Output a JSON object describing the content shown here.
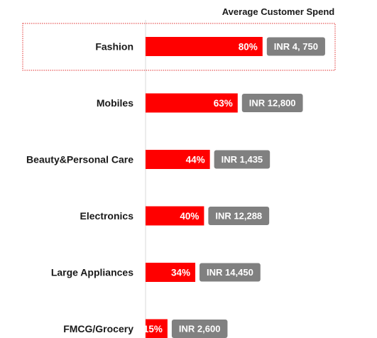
{
  "chart_data": {
    "type": "bar",
    "orientation": "horizontal",
    "column_header": "Average Customer Spend",
    "categories": [
      "Fashion",
      "Mobiles",
      "Beauty&Personal Care",
      "Electronics",
      "Large Appliances",
      "FMCG/Grocery"
    ],
    "values": [
      80,
      63,
      44,
      40,
      34,
      15
    ],
    "value_labels": [
      "80%",
      "63%",
      "44%",
      "40%",
      "34%",
      "15%"
    ],
    "spend_labels": [
      "INR 4, 750",
      "INR 12,800",
      "INR 1,435",
      "INR 12,288",
      "INR 14,450",
      "INR 2,600"
    ],
    "xlim": [
      0,
      100
    ],
    "highlighted_category": "Fashion",
    "grid": false,
    "colors": {
      "bar": "#ff0000",
      "spend_badge": "#808080",
      "highlight_border": "#e03030",
      "axis_line": "#d9d9d9",
      "text": "#1a1a1a"
    }
  }
}
